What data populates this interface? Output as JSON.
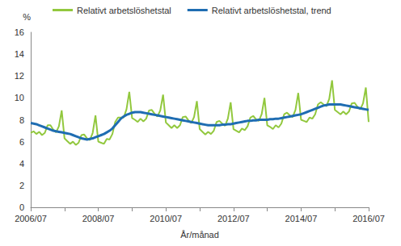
{
  "chart_data": {
    "type": "line",
    "x_label": "År/månad",
    "y_label": "%",
    "legend": "top",
    "grid": false,
    "categories": [
      "2006/07",
      null,
      null,
      null,
      null,
      null,
      null,
      null,
      null,
      null,
      null,
      null,
      null,
      null,
      null,
      null,
      null,
      null,
      null,
      null,
      null,
      null,
      null,
      null,
      "2008/07",
      null,
      null,
      null,
      null,
      null,
      null,
      null,
      null,
      null,
      null,
      null,
      null,
      null,
      null,
      null,
      null,
      null,
      null,
      null,
      null,
      null,
      null,
      null,
      "2010/07",
      null,
      null,
      null,
      null,
      null,
      null,
      null,
      null,
      null,
      null,
      null,
      null,
      null,
      null,
      null,
      null,
      null,
      null,
      null,
      null,
      null,
      null,
      null,
      "2012/07",
      null,
      null,
      null,
      null,
      null,
      null,
      null,
      null,
      null,
      null,
      null,
      null,
      null,
      null,
      null,
      null,
      null,
      null,
      null,
      null,
      null,
      null,
      null,
      "2014/07",
      null,
      null,
      null,
      null,
      null,
      null,
      null,
      null,
      null,
      null,
      null,
      null,
      null,
      null,
      null,
      null,
      null,
      null,
      null,
      null,
      null,
      null,
      null,
      "2016/07"
    ],
    "ylim": [
      0,
      16
    ],
    "yticks": [
      0,
      2,
      4,
      6,
      8,
      10,
      12,
      14,
      16
    ],
    "series": [
      {
        "name": "Relativt arbetslöshetstal",
        "color": "#92c83e",
        "values": [
          6.8,
          6.95,
          6.7,
          6.9,
          6.6,
          6.8,
          7.5,
          7.5,
          7.1,
          6.85,
          7.4,
          8.85,
          6.3,
          6.05,
          5.8,
          6.0,
          5.7,
          5.9,
          6.6,
          6.65,
          6.3,
          6.15,
          6.8,
          8.4,
          6.0,
          5.9,
          5.8,
          6.25,
          6.2,
          6.7,
          7.8,
          8.2,
          8.2,
          8.2,
          8.95,
          10.55,
          8.15,
          8.0,
          7.8,
          8.1,
          7.85,
          8.1,
          8.85,
          8.9,
          8.55,
          8.3,
          8.85,
          10.3,
          7.75,
          7.5,
          7.25,
          7.5,
          7.25,
          7.5,
          8.25,
          8.3,
          7.95,
          7.7,
          8.25,
          9.7,
          7.15,
          6.9,
          6.65,
          6.9,
          6.7,
          7.0,
          7.8,
          7.9,
          7.65,
          7.45,
          8.1,
          9.6,
          7.15,
          7.0,
          6.85,
          7.2,
          7.05,
          7.4,
          8.2,
          8.35,
          8.05,
          7.9,
          8.5,
          10.0,
          7.5,
          7.35,
          7.15,
          7.5,
          7.3,
          7.65,
          8.5,
          8.65,
          8.4,
          8.25,
          8.9,
          10.45,
          8.0,
          7.9,
          7.8,
          8.2,
          8.1,
          8.5,
          9.4,
          9.6,
          9.4,
          9.25,
          9.9,
          11.6,
          8.9,
          8.7,
          8.5,
          8.75,
          8.5,
          8.75,
          9.5,
          9.55,
          9.2,
          8.95,
          9.5,
          10.95,
          7.8
        ]
      },
      {
        "name": "Relativt arbetslöshetstal, trend",
        "color": "#1f6db2",
        "values": [
          7.7,
          7.65,
          7.6,
          7.5,
          7.4,
          7.3,
          7.2,
          7.1,
          7.0,
          6.95,
          6.9,
          6.85,
          6.8,
          6.75,
          6.7,
          6.6,
          6.5,
          6.4,
          6.3,
          6.25,
          6.2,
          6.25,
          6.3,
          6.4,
          6.5,
          6.6,
          6.7,
          6.85,
          7.0,
          7.2,
          7.5,
          7.8,
          8.1,
          8.3,
          8.45,
          8.55,
          8.65,
          8.7,
          8.7,
          8.7,
          8.65,
          8.6,
          8.55,
          8.5,
          8.45,
          8.4,
          8.35,
          8.3,
          8.25,
          8.2,
          8.15,
          8.1,
          8.05,
          8.0,
          7.95,
          7.9,
          7.85,
          7.8,
          7.75,
          7.7,
          7.65,
          7.6,
          7.55,
          7.5,
          7.5,
          7.5,
          7.5,
          7.5,
          7.55,
          7.55,
          7.6,
          7.6,
          7.65,
          7.7,
          7.75,
          7.8,
          7.85,
          7.9,
          7.9,
          7.95,
          7.95,
          8.0,
          8.0,
          8.0,
          8.0,
          8.05,
          8.05,
          8.1,
          8.1,
          8.15,
          8.2,
          8.25,
          8.3,
          8.35,
          8.4,
          8.45,
          8.5,
          8.6,
          8.7,
          8.8,
          8.9,
          9.0,
          9.1,
          9.2,
          9.3,
          9.35,
          9.4,
          9.4,
          9.4,
          9.4,
          9.4,
          9.35,
          9.3,
          9.25,
          9.2,
          9.15,
          9.1,
          9.05,
          9.0,
          8.95,
          8.9
        ]
      }
    ]
  }
}
